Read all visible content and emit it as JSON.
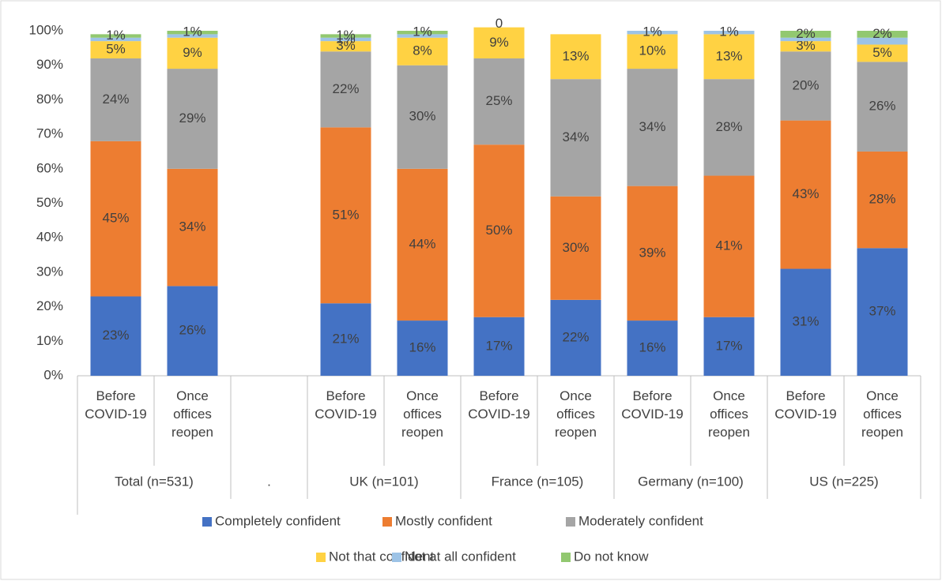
{
  "chart_data": {
    "type": "stacked_bar",
    "groups": [
      {
        "name": "Total (n=531)",
        "categories": [
          "Before COVID-19",
          "Once offices reopen"
        ]
      },
      {
        "name": ".",
        "categories": [
          null
        ]
      },
      {
        "name": "UK (n=101)",
        "categories": [
          "Before COVID-19",
          "Once offices reopen"
        ]
      },
      {
        "name": "France (n=105)",
        "categories": [
          "Before COVID-19",
          "Once offices reopen"
        ]
      },
      {
        "name": "Germany (n=100)",
        "categories": [
          "Before COVID-19",
          "Once offices reopen"
        ]
      },
      {
        "name": "US (n=225)",
        "categories": [
          "Before COVID-19",
          "Once offices reopen"
        ]
      }
    ],
    "series": [
      {
        "name": "Completely confident",
        "color": "#4472c4",
        "values": [
          23,
          26,
          null,
          21,
          16,
          17,
          22,
          16,
          17,
          31,
          37
        ],
        "value_labels": [
          "23%",
          "26%",
          null,
          "21%",
          "16%",
          "17%",
          "22%",
          "16%",
          "17%",
          "31%",
          "37%"
        ]
      },
      {
        "name": "Mostly confident",
        "color": "#ed7d31",
        "values": [
          45,
          34,
          null,
          51,
          44,
          50,
          30,
          39,
          41,
          43,
          28
        ],
        "value_labels": [
          "45%",
          "34%",
          null,
          "51%",
          "44%",
          "50%",
          "30%",
          "39%",
          "41%",
          "43%",
          "28%"
        ]
      },
      {
        "name": "Moderately confident",
        "color": "#a5a5a5",
        "values": [
          24,
          29,
          null,
          22,
          30,
          25,
          34,
          34,
          28,
          20,
          26
        ],
        "value_labels": [
          "24%",
          "29%",
          null,
          "22%",
          "30%",
          "25%",
          "34%",
          "34%",
          "28%",
          "20%",
          "26%"
        ]
      },
      {
        "name": "Not that confident",
        "color": "#ffd243",
        "values": [
          5,
          9,
          null,
          3,
          8,
          9,
          13,
          10,
          13,
          3,
          5
        ],
        "value_labels": [
          "5%",
          "9%",
          null,
          "3%",
          "8%",
          "9%",
          "13%",
          "10%",
          "13%",
          "3%",
          "5%"
        ]
      },
      {
        "name": "Not at all confident",
        "color": "#9dc3e6",
        "values": [
          1,
          1,
          null,
          1,
          1,
          0,
          null,
          1,
          1,
          1,
          2
        ],
        "value_labels": [
          null,
          null,
          null,
          "1%",
          null,
          "0",
          null,
          "1%",
          "1%",
          null,
          null
        ]
      },
      {
        "name": "Do not know",
        "color": "#92c870",
        "values": [
          1,
          1,
          null,
          1,
          1,
          null,
          null,
          null,
          null,
          2,
          2
        ],
        "value_labels": [
          "1%",
          "1%",
          null,
          "1%",
          "1%",
          null,
          null,
          null,
          null,
          "2%",
          "2%"
        ]
      }
    ],
    "ylim": [
      0,
      100
    ],
    "yticks": [
      {
        "value": 0,
        "label": "0%"
      },
      {
        "value": 10,
        "label": "10%"
      },
      {
        "value": 20,
        "label": "20%"
      },
      {
        "value": 30,
        "label": "30%"
      },
      {
        "value": 40,
        "label": "40%"
      },
      {
        "value": 50,
        "label": "50%"
      },
      {
        "value": 60,
        "label": "60%"
      },
      {
        "value": 70,
        "label": "70%"
      },
      {
        "value": 80,
        "label": "80%"
      },
      {
        "value": 90,
        "label": "90%"
      },
      {
        "value": 100,
        "label": "100%"
      }
    ]
  }
}
